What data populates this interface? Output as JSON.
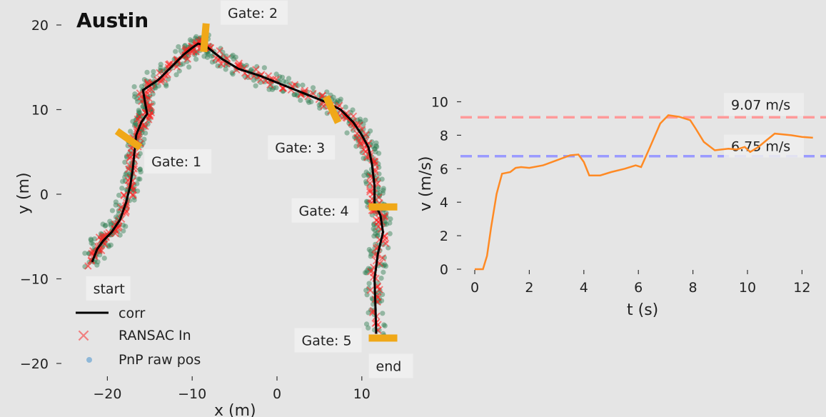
{
  "chart_data": [
    {
      "type": "scatter",
      "title": "Austin",
      "xlabel": "x (m)",
      "ylabel": "y (m)",
      "xlim": [
        -24,
        16
      ],
      "ylim": [
        -22,
        22
      ],
      "xticks": [
        -20,
        -10,
        0,
        10
      ],
      "yticks": [
        -20,
        -10,
        0,
        10,
        20
      ],
      "grid": false,
      "legend_position": "bottom-left",
      "legend": [
        "corr",
        "RANSAC In",
        "PnP raw pos"
      ],
      "colors": {
        "corr": "#000000",
        "ransac": "#ff2222",
        "pnp": "#2e7d4f",
        "gate": "#f0a818"
      },
      "path": [
        [
          -21.8,
          -8
        ],
        [
          -21.2,
          -6.5
        ],
        [
          -20.5,
          -5.5
        ],
        [
          -19.5,
          -4.5
        ],
        [
          -18.5,
          -3
        ],
        [
          -17.8,
          -1
        ],
        [
          -17.3,
          1
        ],
        [
          -17,
          3
        ],
        [
          -16.8,
          5
        ],
        [
          -16.6,
          7
        ],
        [
          -16,
          8.5
        ],
        [
          -15.3,
          9.5
        ],
        [
          -15.5,
          10.5
        ],
        [
          -15.8,
          12.3
        ],
        [
          -14,
          13.5
        ],
        [
          -12.5,
          15
        ],
        [
          -11,
          16.5
        ],
        [
          -10,
          17.3
        ],
        [
          -9.3,
          17.8
        ],
        [
          -8.5,
          17.6
        ],
        [
          -6.5,
          16
        ],
        [
          -4.5,
          14.8
        ],
        [
          -2,
          14
        ],
        [
          0.5,
          13
        ],
        [
          3,
          12
        ],
        [
          5.5,
          11
        ],
        [
          7.5,
          10
        ],
        [
          9,
          8.5
        ],
        [
          10,
          7
        ],
        [
          10.8,
          5.5
        ],
        [
          11.2,
          3.5
        ],
        [
          11.5,
          1
        ],
        [
          11.5,
          -1
        ],
        [
          12.2,
          -2.5
        ],
        [
          12.5,
          -4.5
        ],
        [
          11.9,
          -7
        ],
        [
          11.5,
          -10
        ],
        [
          11.6,
          -13
        ],
        [
          11.7,
          -16.5
        ]
      ],
      "gates": [
        {
          "label": "Gate: 1",
          "x": -17.5,
          "y": 6.5
        },
        {
          "label": "Gate: 2",
          "x": -8.5,
          "y": 18.5
        },
        {
          "label": "Gate: 3",
          "x": 6.5,
          "y": 10
        },
        {
          "label": "Gate: 4",
          "x": 12.5,
          "y": -1.5
        },
        {
          "label": "Gate: 5",
          "x": 12.5,
          "y": -17
        }
      ],
      "markers": [
        {
          "label": "start",
          "x": -21.5,
          "y": -8
        },
        {
          "label": "end",
          "x": 12,
          "y": -17
        }
      ]
    },
    {
      "type": "line",
      "xlabel": "t (s)",
      "ylabel": "v (m/s)",
      "xlim": [
        -0.6,
        12.8
      ],
      "ylim": [
        -0.2,
        10.8
      ],
      "xticks": [
        0,
        2,
        4,
        6,
        8,
        10,
        12
      ],
      "yticks": [
        0,
        2,
        4,
        6,
        8,
        10
      ],
      "grid": false,
      "series": [
        {
          "color": "#ff8a24",
          "x": [
            0,
            0.3,
            0.45,
            0.6,
            0.8,
            1,
            1.3,
            1.5,
            1.7,
            2,
            2.5,
            3,
            3.5,
            3.8,
            4,
            4.2,
            4.6,
            5,
            5.5,
            5.9,
            6.1,
            6.4,
            6.8,
            7.1,
            7.5,
            7.9,
            8.1,
            8.4,
            8.8,
            9.3,
            9.6,
            9.9,
            10.1,
            10.4,
            10.7,
            11,
            11.6,
            12,
            12.4
          ],
          "y": [
            0,
            0,
            0.8,
            2.5,
            4.5,
            5.7,
            5.8,
            6.05,
            6.1,
            6.05,
            6.2,
            6.5,
            6.8,
            6.85,
            6.4,
            5.6,
            5.6,
            5.8,
            6,
            6.2,
            6.1,
            7.2,
            8.7,
            9.2,
            9.1,
            8.9,
            8.4,
            7.6,
            7.1,
            7.2,
            7.15,
            7.3,
            7,
            7.3,
            7.7,
            8.1,
            8,
            7.9,
            7.85
          ]
        }
      ],
      "hlines": [
        {
          "value": 9.07,
          "label": "9.07 m/s",
          "color": "#ff9a9a"
        },
        {
          "value": 6.75,
          "label": "6.75 m/s",
          "color": "#9a9aff"
        }
      ]
    }
  ],
  "legend_labels": {
    "corr": "corr",
    "ransac": "RANSAC In",
    "pnp": "PnP raw pos"
  }
}
